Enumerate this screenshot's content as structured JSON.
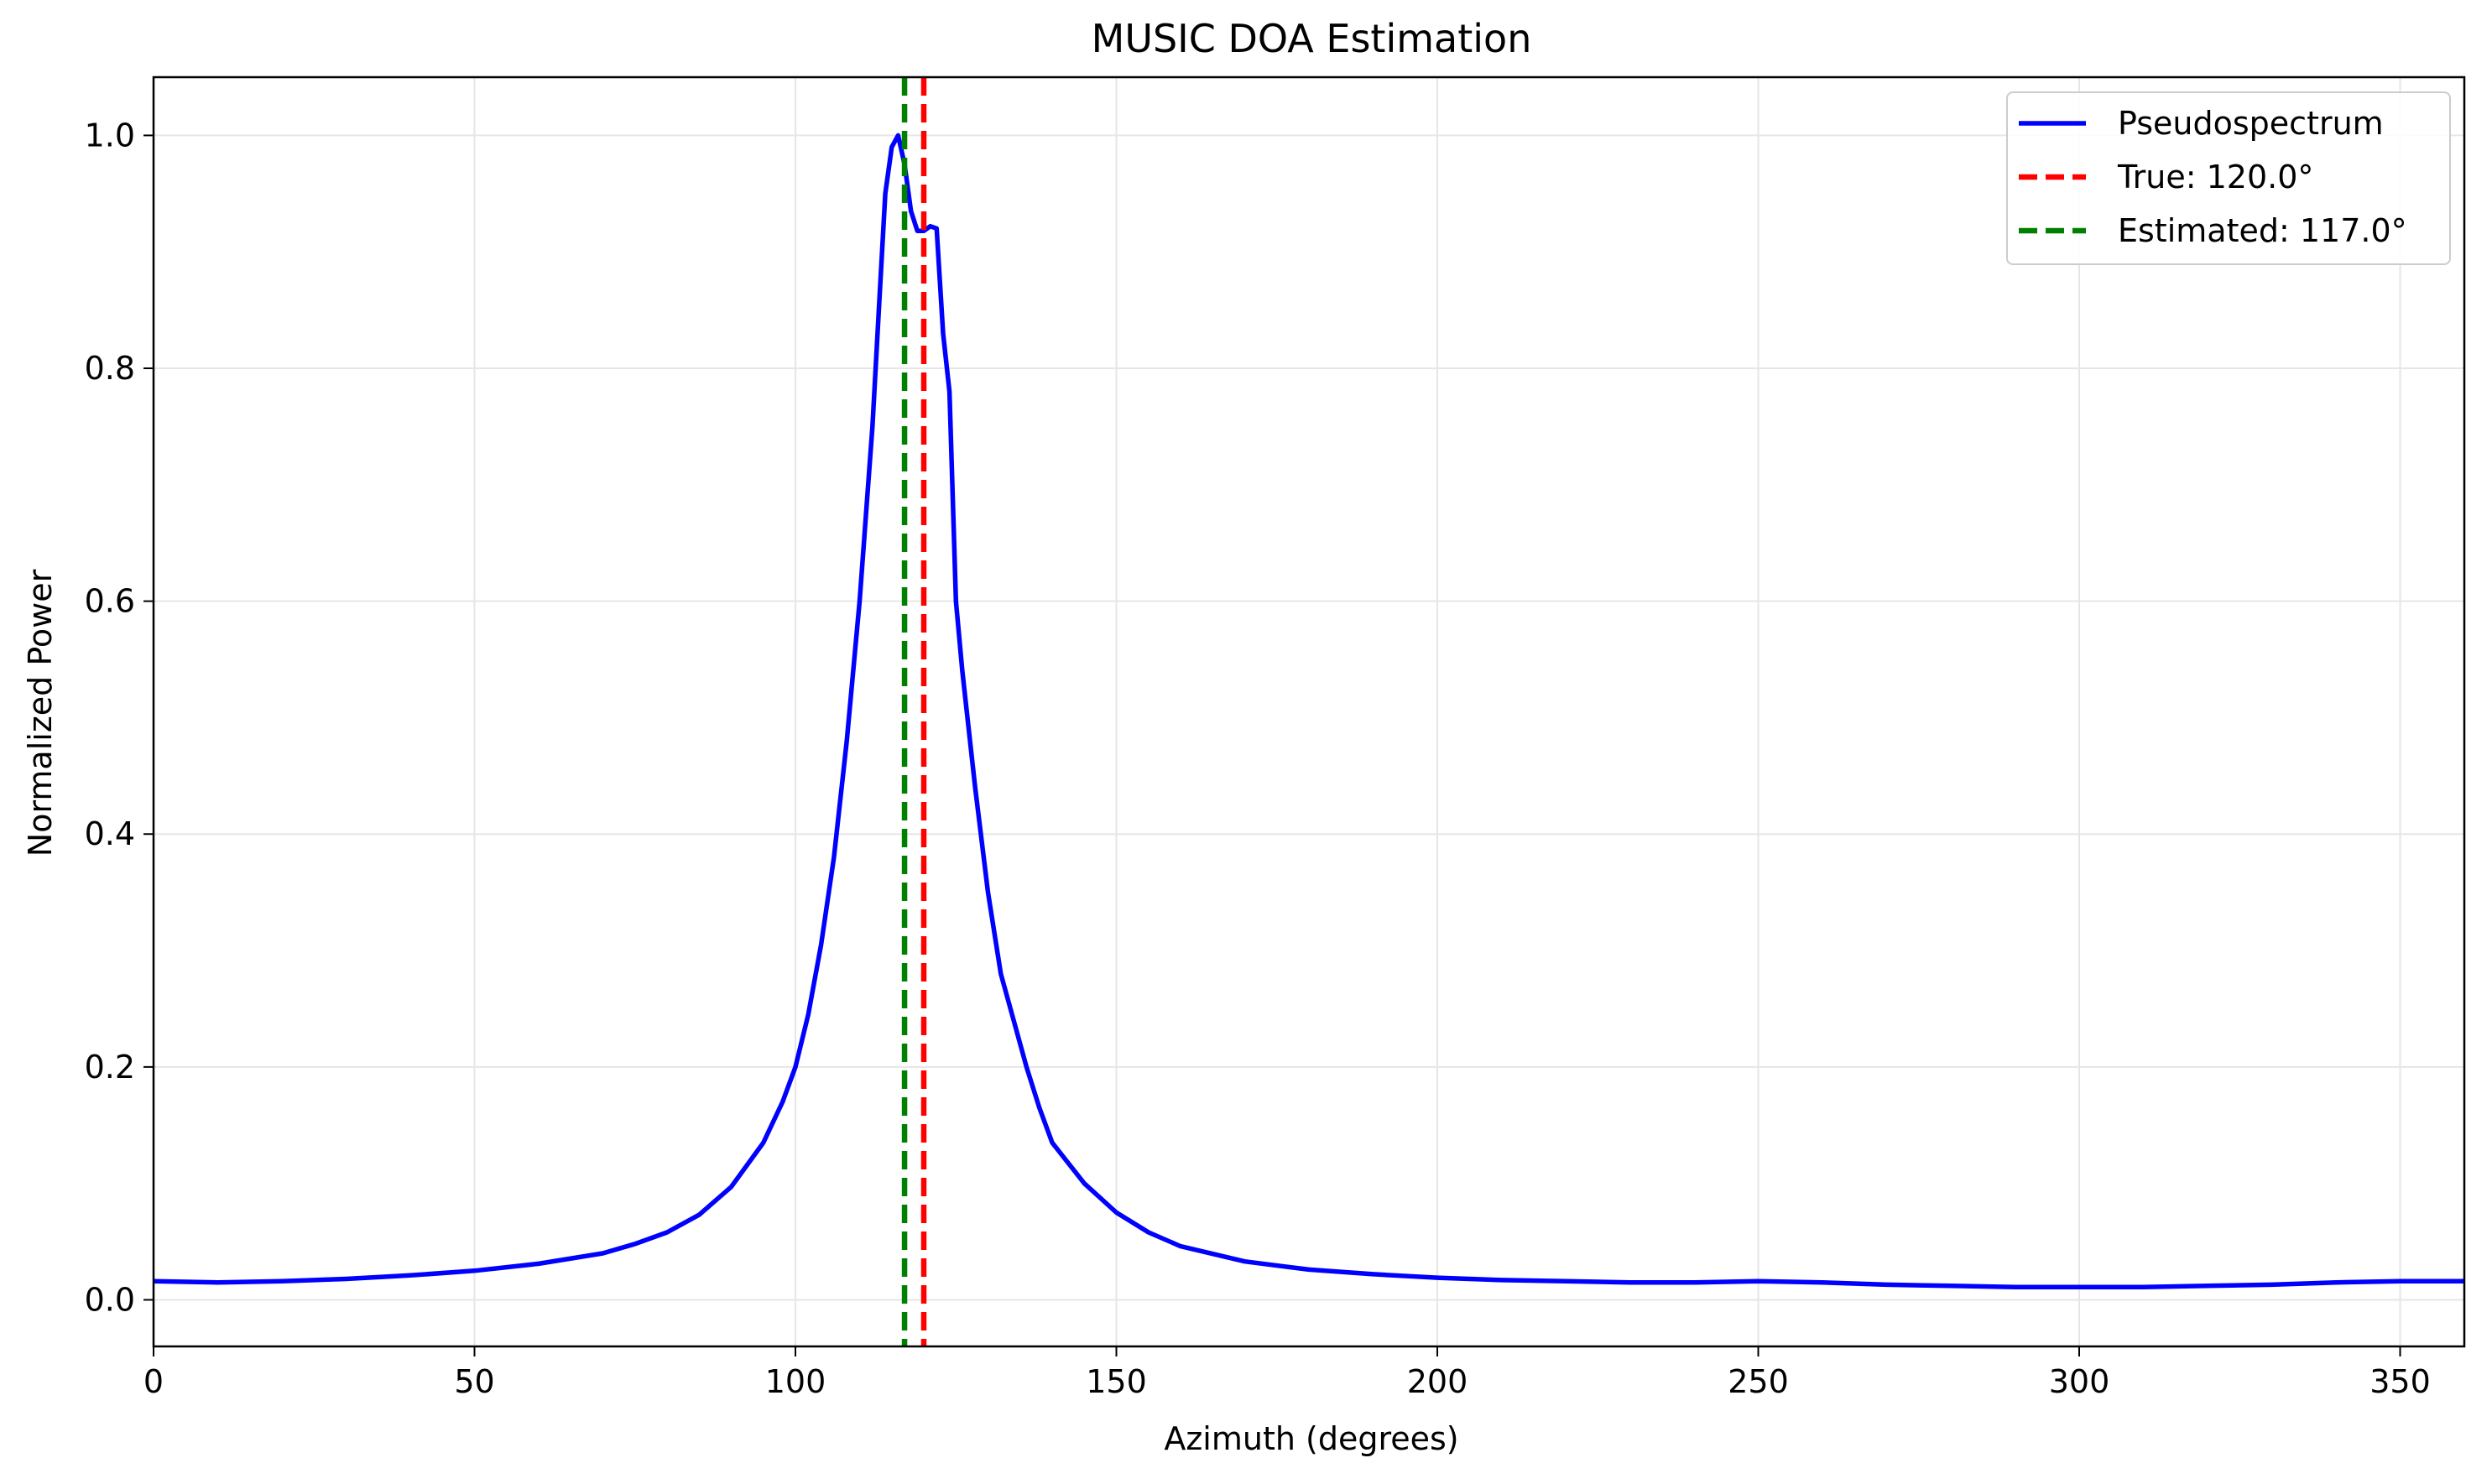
{
  "chart_data": {
    "type": "line",
    "title": "MUSIC DOA Estimation",
    "xlabel": "Azimuth (degrees)",
    "ylabel": "Normalized Power",
    "xlim": [
      0,
      360
    ],
    "ylim": [
      -0.04,
      1.05
    ],
    "xticks": [
      0,
      50,
      100,
      150,
      200,
      250,
      300,
      350
    ],
    "yticks": [
      0.0,
      0.2,
      0.4,
      0.6,
      0.8,
      1.0
    ],
    "xtick_labels": [
      "0",
      "50",
      "100",
      "150",
      "200",
      "250",
      "300",
      "350"
    ],
    "ytick_labels": [
      "0.0",
      "0.2",
      "0.4",
      "0.6",
      "0.8",
      "1.0"
    ],
    "grid": true,
    "legend_position": "top-right",
    "series": [
      {
        "name": "Pseudospectrum",
        "color": "#0000ff",
        "style": "solid",
        "x": [
          0,
          10,
          20,
          30,
          40,
          50,
          60,
          70,
          75,
          80,
          85,
          90,
          95,
          98,
          100,
          102,
          104,
          106,
          108,
          110,
          112,
          113,
          114,
          115,
          116,
          117,
          118,
          119,
          120,
          121,
          122,
          123,
          124,
          125,
          126,
          128,
          130,
          132,
          134,
          136,
          138,
          140,
          145,
          150,
          155,
          160,
          170,
          180,
          190,
          200,
          210,
          220,
          230,
          240,
          250,
          260,
          270,
          280,
          290,
          300,
          310,
          320,
          330,
          340,
          350,
          360
        ],
        "y": [
          0.016,
          0.015,
          0.016,
          0.018,
          0.021,
          0.025,
          0.031,
          0.04,
          0.048,
          0.058,
          0.073,
          0.097,
          0.135,
          0.17,
          0.2,
          0.245,
          0.305,
          0.38,
          0.48,
          0.6,
          0.75,
          0.85,
          0.95,
          0.99,
          1.0,
          0.975,
          0.935,
          0.918,
          0.918,
          0.922,
          0.92,
          0.83,
          0.78,
          0.6,
          0.54,
          0.44,
          0.35,
          0.28,
          0.24,
          0.2,
          0.165,
          0.135,
          0.1,
          0.075,
          0.058,
          0.046,
          0.033,
          0.026,
          0.022,
          0.019,
          0.017,
          0.016,
          0.015,
          0.015,
          0.016,
          0.015,
          0.013,
          0.012,
          0.011,
          0.011,
          0.011,
          0.012,
          0.013,
          0.015,
          0.016,
          0.016
        ]
      },
      {
        "name": "True: 120.0°",
        "color": "#ff0000",
        "style": "dashed",
        "vline": 120.0
      },
      {
        "name": "Estimated: 117.0°",
        "color": "#008000",
        "style": "dashed",
        "vline": 117.0
      }
    ]
  }
}
